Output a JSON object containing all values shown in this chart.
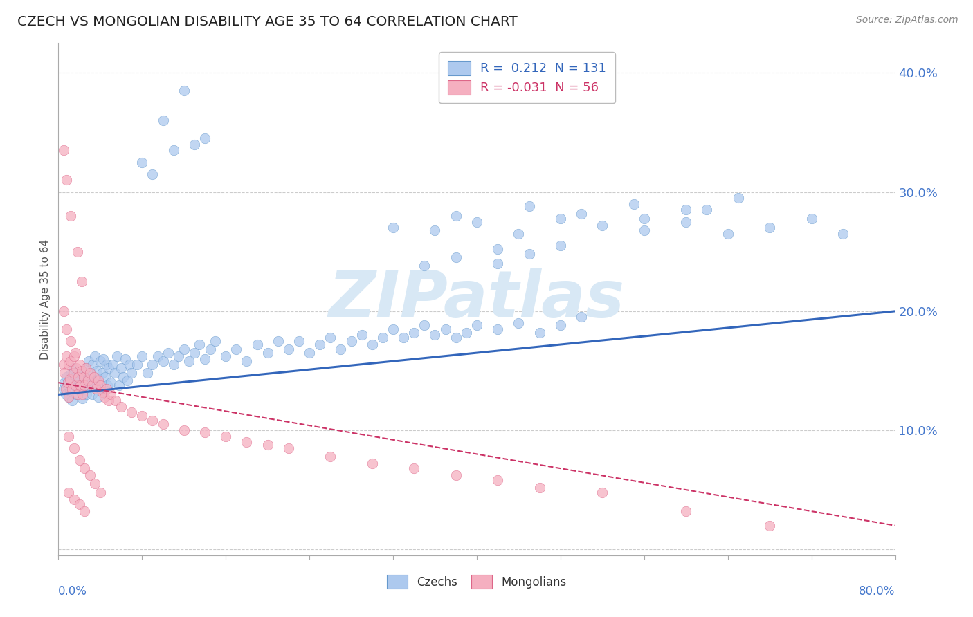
{
  "title": "CZECH VS MONGOLIAN DISABILITY AGE 35 TO 64 CORRELATION CHART",
  "source": "Source: ZipAtlas.com",
  "ylabel": "Disability Age 35 to 64",
  "xlim": [
    0.0,
    0.8
  ],
  "ylim": [
    -0.005,
    0.425
  ],
  "yticks": [
    0.0,
    0.1,
    0.2,
    0.3,
    0.4
  ],
  "czech_R": 0.212,
  "czech_N": 131,
  "mongolian_R": -0.031,
  "mongolian_N": 56,
  "czech_color": "#adc9ee",
  "czech_edge_color": "#6699cc",
  "czech_line_color": "#3366bb",
  "mongolian_color": "#f5afc0",
  "mongolian_edge_color": "#dd6688",
  "mongolian_line_color": "#cc3366",
  "background_color": "#ffffff",
  "grid_color": "#cccccc",
  "title_color": "#222222",
  "axis_label_color": "#4477cc",
  "watermark_color": "#d8e8f5",
  "watermark_text": "ZIPatlas",
  "czech_trend_start_y": 0.13,
  "czech_trend_end_y": 0.2,
  "mongolian_trend_start_y": 0.14,
  "mongolian_trend_end_y": 0.02,
  "czech_x": [
    0.005,
    0.006,
    0.007,
    0.008,
    0.009,
    0.01,
    0.01,
    0.011,
    0.012,
    0.013,
    0.014,
    0.015,
    0.016,
    0.017,
    0.018,
    0.019,
    0.02,
    0.021,
    0.022,
    0.023,
    0.024,
    0.025,
    0.026,
    0.027,
    0.028,
    0.029,
    0.03,
    0.031,
    0.032,
    0.033,
    0.034,
    0.035,
    0.036,
    0.037,
    0.038,
    0.039,
    0.04,
    0.041,
    0.042,
    0.043,
    0.044,
    0.045,
    0.046,
    0.047,
    0.048,
    0.05,
    0.052,
    0.054,
    0.056,
    0.058,
    0.06,
    0.062,
    0.064,
    0.066,
    0.068,
    0.07,
    0.075,
    0.08,
    0.085,
    0.09,
    0.095,
    0.1,
    0.105,
    0.11,
    0.115,
    0.12,
    0.125,
    0.13,
    0.135,
    0.14,
    0.145,
    0.15,
    0.16,
    0.17,
    0.18,
    0.19,
    0.2,
    0.21,
    0.22,
    0.23,
    0.24,
    0.25,
    0.26,
    0.27,
    0.28,
    0.29,
    0.3,
    0.31,
    0.32,
    0.33,
    0.34,
    0.35,
    0.36,
    0.37,
    0.38,
    0.39,
    0.4,
    0.42,
    0.44,
    0.46,
    0.48,
    0.5,
    0.32,
    0.36,
    0.4,
    0.44,
    0.48,
    0.52,
    0.56,
    0.6,
    0.64,
    0.68,
    0.72,
    0.75,
    0.55,
    0.6,
    0.65,
    0.38,
    0.45,
    0.5,
    0.56,
    0.62,
    0.42,
    0.38,
    0.35,
    0.42,
    0.45,
    0.48,
    0.1,
    0.12,
    0.14,
    0.08,
    0.09,
    0.11,
    0.13
  ],
  "czech_y": [
    0.135,
    0.14,
    0.13,
    0.145,
    0.138,
    0.142,
    0.128,
    0.133,
    0.147,
    0.125,
    0.152,
    0.138,
    0.143,
    0.13,
    0.148,
    0.137,
    0.142,
    0.133,
    0.15,
    0.127,
    0.145,
    0.138,
    0.152,
    0.13,
    0.143,
    0.158,
    0.136,
    0.148,
    0.13,
    0.155,
    0.14,
    0.162,
    0.135,
    0.15,
    0.128,
    0.143,
    0.158,
    0.135,
    0.148,
    0.16,
    0.133,
    0.145,
    0.155,
    0.138,
    0.152,
    0.14,
    0.155,
    0.148,
    0.162,
    0.138,
    0.152,
    0.145,
    0.16,
    0.142,
    0.155,
    0.148,
    0.155,
    0.162,
    0.148,
    0.155,
    0.162,
    0.158,
    0.165,
    0.155,
    0.162,
    0.168,
    0.158,
    0.165,
    0.172,
    0.16,
    0.168,
    0.175,
    0.162,
    0.168,
    0.158,
    0.172,
    0.165,
    0.175,
    0.168,
    0.175,
    0.165,
    0.172,
    0.178,
    0.168,
    0.175,
    0.18,
    0.172,
    0.178,
    0.185,
    0.178,
    0.182,
    0.188,
    0.18,
    0.185,
    0.178,
    0.182,
    0.188,
    0.185,
    0.19,
    0.182,
    0.188,
    0.195,
    0.27,
    0.268,
    0.275,
    0.265,
    0.278,
    0.272,
    0.268,
    0.275,
    0.265,
    0.27,
    0.278,
    0.265,
    0.29,
    0.285,
    0.295,
    0.28,
    0.288,
    0.282,
    0.278,
    0.285,
    0.24,
    0.245,
    0.238,
    0.252,
    0.248,
    0.255,
    0.36,
    0.385,
    0.345,
    0.325,
    0.315,
    0.335,
    0.34
  ],
  "mongolian_x": [
    0.005,
    0.006,
    0.007,
    0.008,
    0.009,
    0.01,
    0.01,
    0.011,
    0.012,
    0.013,
    0.014,
    0.015,
    0.016,
    0.017,
    0.018,
    0.019,
    0.02,
    0.021,
    0.022,
    0.023,
    0.024,
    0.025,
    0.026,
    0.028,
    0.03,
    0.032,
    0.034,
    0.036,
    0.038,
    0.04,
    0.042,
    0.044,
    0.046,
    0.048,
    0.05,
    0.055,
    0.06,
    0.07,
    0.08,
    0.09,
    0.1,
    0.12,
    0.14,
    0.16,
    0.18,
    0.2,
    0.22,
    0.26,
    0.3,
    0.34,
    0.38,
    0.42,
    0.46,
    0.52,
    0.6,
    0.68
  ],
  "mongolian_y": [
    0.155,
    0.148,
    0.135,
    0.162,
    0.14,
    0.155,
    0.128,
    0.143,
    0.158,
    0.135,
    0.148,
    0.162,
    0.138,
    0.152,
    0.13,
    0.145,
    0.155,
    0.138,
    0.15,
    0.13,
    0.145,
    0.138,
    0.152,
    0.142,
    0.148,
    0.138,
    0.145,
    0.135,
    0.142,
    0.138,
    0.132,
    0.128,
    0.135,
    0.125,
    0.13,
    0.125,
    0.12,
    0.115,
    0.112,
    0.108,
    0.105,
    0.1,
    0.098,
    0.095,
    0.09,
    0.088,
    0.085,
    0.078,
    0.072,
    0.068,
    0.062,
    0.058,
    0.052,
    0.048,
    0.032,
    0.02
  ],
  "mongolian_outlier_x": [
    0.01,
    0.015,
    0.02,
    0.025,
    0.03,
    0.035,
    0.04,
    0.01,
    0.015,
    0.02,
    0.025,
    0.005,
    0.008,
    0.012,
    0.018,
    0.022,
    0.005,
    0.008,
    0.012,
    0.016
  ],
  "mongolian_outlier_y": [
    0.095,
    0.085,
    0.075,
    0.068,
    0.062,
    0.055,
    0.048,
    0.048,
    0.042,
    0.038,
    0.032,
    0.335,
    0.31,
    0.28,
    0.25,
    0.225,
    0.2,
    0.185,
    0.175,
    0.165
  ]
}
